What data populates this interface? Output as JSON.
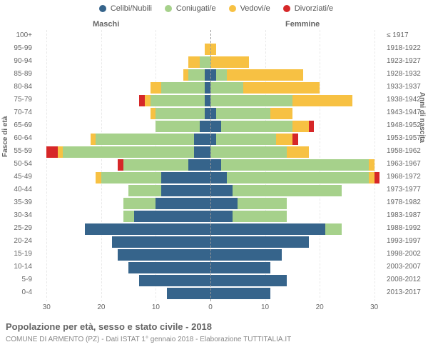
{
  "title": "Popolazione per età, sesso e stato civile - 2018",
  "subtitle": "COMUNE DI ARMENTO (PZ) - Dati ISTAT 1° gennaio 2018 - Elaborazione TUTTITALIA.IT",
  "ylabel_left": "Fasce di età",
  "ylabel_right": "Anni di nascita",
  "header_m": "Maschi",
  "header_f": "Femmine",
  "legend": [
    {
      "label": "Celibi/Nubili",
      "color": "#36648b"
    },
    {
      "label": "Coniugati/e",
      "color": "#a6d18b"
    },
    {
      "label": "Vedovi/e",
      "color": "#f7c143"
    },
    {
      "label": "Divorziati/e",
      "color": "#d62728"
    }
  ],
  "colors": {
    "celibi": "#36648b",
    "coniugati": "#a6d18b",
    "vedovi": "#f7c143",
    "divorziati": "#d62728",
    "grid": "#e8e8e8",
    "bg": "#ffffff"
  },
  "xmax": 32,
  "xticks": [
    30,
    20,
    10,
    0,
    10,
    20,
    30
  ],
  "rows": [
    {
      "age": "100+",
      "year": "≤ 1917",
      "m": {
        "cel": 0,
        "con": 0,
        "ved": 0,
        "div": 0
      },
      "f": {
        "cel": 0,
        "con": 0,
        "ved": 0,
        "div": 0
      }
    },
    {
      "age": "95-99",
      "year": "1918-1922",
      "m": {
        "cel": 0,
        "con": 0,
        "ved": 1,
        "div": 0
      },
      "f": {
        "cel": 0,
        "con": 0,
        "ved": 1,
        "div": 0
      }
    },
    {
      "age": "90-94",
      "year": "1923-1927",
      "m": {
        "cel": 0,
        "con": 2,
        "ved": 2,
        "div": 0
      },
      "f": {
        "cel": 0,
        "con": 0,
        "ved": 7,
        "div": 0
      }
    },
    {
      "age": "85-89",
      "year": "1928-1932",
      "m": {
        "cel": 1,
        "con": 3,
        "ved": 1,
        "div": 0
      },
      "f": {
        "cel": 1,
        "con": 2,
        "ved": 14,
        "div": 0
      }
    },
    {
      "age": "80-84",
      "year": "1933-1937",
      "m": {
        "cel": 1,
        "con": 8,
        "ved": 2,
        "div": 0
      },
      "f": {
        "cel": 0,
        "con": 6,
        "ved": 14,
        "div": 0
      }
    },
    {
      "age": "75-79",
      "year": "1938-1942",
      "m": {
        "cel": 1,
        "con": 10,
        "ved": 1,
        "div": 1
      },
      "f": {
        "cel": 0,
        "con": 15,
        "ved": 11,
        "div": 0
      }
    },
    {
      "age": "70-74",
      "year": "1943-1947",
      "m": {
        "cel": 1,
        "con": 9,
        "ved": 1,
        "div": 0
      },
      "f": {
        "cel": 1,
        "con": 10,
        "ved": 4,
        "div": 0
      }
    },
    {
      "age": "65-69",
      "year": "1948-1952",
      "m": {
        "cel": 2,
        "con": 8,
        "ved": 0,
        "div": 0
      },
      "f": {
        "cel": 2,
        "con": 13,
        "ved": 3,
        "div": 1
      }
    },
    {
      "age": "60-64",
      "year": "1953-1957",
      "m": {
        "cel": 3,
        "con": 18,
        "ved": 1,
        "div": 0
      },
      "f": {
        "cel": 1,
        "con": 11,
        "ved": 3,
        "div": 1
      }
    },
    {
      "age": "55-59",
      "year": "1958-1962",
      "m": {
        "cel": 3,
        "con": 24,
        "ved": 1,
        "div": 2
      },
      "f": {
        "cel": 0,
        "con": 14,
        "ved": 4,
        "div": 0
      }
    },
    {
      "age": "50-54",
      "year": "1963-1967",
      "m": {
        "cel": 4,
        "con": 12,
        "ved": 0,
        "div": 1
      },
      "f": {
        "cel": 2,
        "con": 27,
        "ved": 1,
        "div": 0
      }
    },
    {
      "age": "45-49",
      "year": "1968-1972",
      "m": {
        "cel": 9,
        "con": 11,
        "ved": 1,
        "div": 0
      },
      "f": {
        "cel": 3,
        "con": 26,
        "ved": 1,
        "div": 1
      }
    },
    {
      "age": "40-44",
      "year": "1973-1977",
      "m": {
        "cel": 9,
        "con": 6,
        "ved": 0,
        "div": 0
      },
      "f": {
        "cel": 4,
        "con": 20,
        "ved": 0,
        "div": 0
      }
    },
    {
      "age": "35-39",
      "year": "1978-1982",
      "m": {
        "cel": 10,
        "con": 6,
        "ved": 0,
        "div": 0
      },
      "f": {
        "cel": 5,
        "con": 9,
        "ved": 0,
        "div": 0
      }
    },
    {
      "age": "30-34",
      "year": "1983-1987",
      "m": {
        "cel": 14,
        "con": 2,
        "ved": 0,
        "div": 0
      },
      "f": {
        "cel": 4,
        "con": 10,
        "ved": 0,
        "div": 0
      }
    },
    {
      "age": "25-29",
      "year": "1988-1992",
      "m": {
        "cel": 23,
        "con": 0,
        "ved": 0,
        "div": 0
      },
      "f": {
        "cel": 21,
        "con": 3,
        "ved": 0,
        "div": 0
      }
    },
    {
      "age": "20-24",
      "year": "1993-1997",
      "m": {
        "cel": 18,
        "con": 0,
        "ved": 0,
        "div": 0
      },
      "f": {
        "cel": 18,
        "con": 0,
        "ved": 0,
        "div": 0
      }
    },
    {
      "age": "15-19",
      "year": "1998-2002",
      "m": {
        "cel": 17,
        "con": 0,
        "ved": 0,
        "div": 0
      },
      "f": {
        "cel": 13,
        "con": 0,
        "ved": 0,
        "div": 0
      }
    },
    {
      "age": "10-14",
      "year": "2003-2007",
      "m": {
        "cel": 15,
        "con": 0,
        "ved": 0,
        "div": 0
      },
      "f": {
        "cel": 11,
        "con": 0,
        "ved": 0,
        "div": 0
      }
    },
    {
      "age": "5-9",
      "year": "2008-2012",
      "m": {
        "cel": 13,
        "con": 0,
        "ved": 0,
        "div": 0
      },
      "f": {
        "cel": 14,
        "con": 0,
        "ved": 0,
        "div": 0
      }
    },
    {
      "age": "0-4",
      "year": "2013-2017",
      "m": {
        "cel": 8,
        "con": 0,
        "ved": 0,
        "div": 0
      },
      "f": {
        "cel": 11,
        "con": 0,
        "ved": 0,
        "div": 0
      }
    }
  ]
}
